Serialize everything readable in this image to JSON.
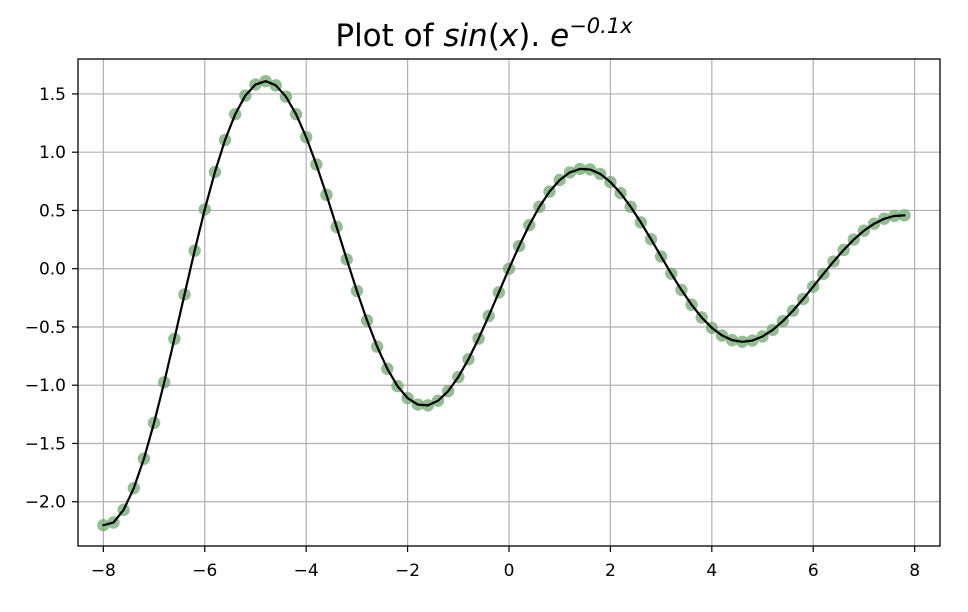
{
  "chart_data": {
    "type": "line",
    "title": {
      "prefix": "Plot of ",
      "func": "sin",
      "open": "(",
      "var": "x",
      "close": ")",
      "dot": ". ",
      "base": "e",
      "exponent": "−0.1x"
    },
    "xlabel": "",
    "ylabel": "",
    "xlim": [
      -8.5,
      8.5
    ],
    "ylim": [
      -2.38,
      1.8
    ],
    "x_ticks": [
      -8,
      -6,
      -4,
      -2,
      0,
      2,
      4,
      6,
      8
    ],
    "x_tick_labels": [
      "−8",
      "−6",
      "−4",
      "−2",
      "0",
      "2",
      "4",
      "6",
      "8"
    ],
    "y_ticks": [
      -2.0,
      -1.5,
      -1.0,
      -0.5,
      0.0,
      0.5,
      1.0,
      1.5
    ],
    "y_tick_labels": [
      "−2.0",
      "−1.5",
      "−1.0",
      "−0.5",
      "0.0",
      "0.5",
      "1.0",
      "1.5"
    ],
    "grid": true,
    "legend": "none",
    "x_range": [
      -8.0,
      7.8
    ],
    "x_step": 0.2,
    "series": [
      {
        "kind": "scatter",
        "marker": "circle",
        "color": "#6fa86f",
        "opacity": 0.75,
        "x_range": [
          -8.0,
          7.8
        ],
        "x_step": 0.2
      },
      {
        "kind": "line",
        "color": "#000000",
        "x_range": [
          -8.0,
          7.8
        ],
        "x_step": 0.2
      }
    ],
    "colors": {
      "axis": "#000000",
      "grid": "#b0b0b0",
      "marker": "#6fa86f",
      "line": "#000000"
    }
  }
}
